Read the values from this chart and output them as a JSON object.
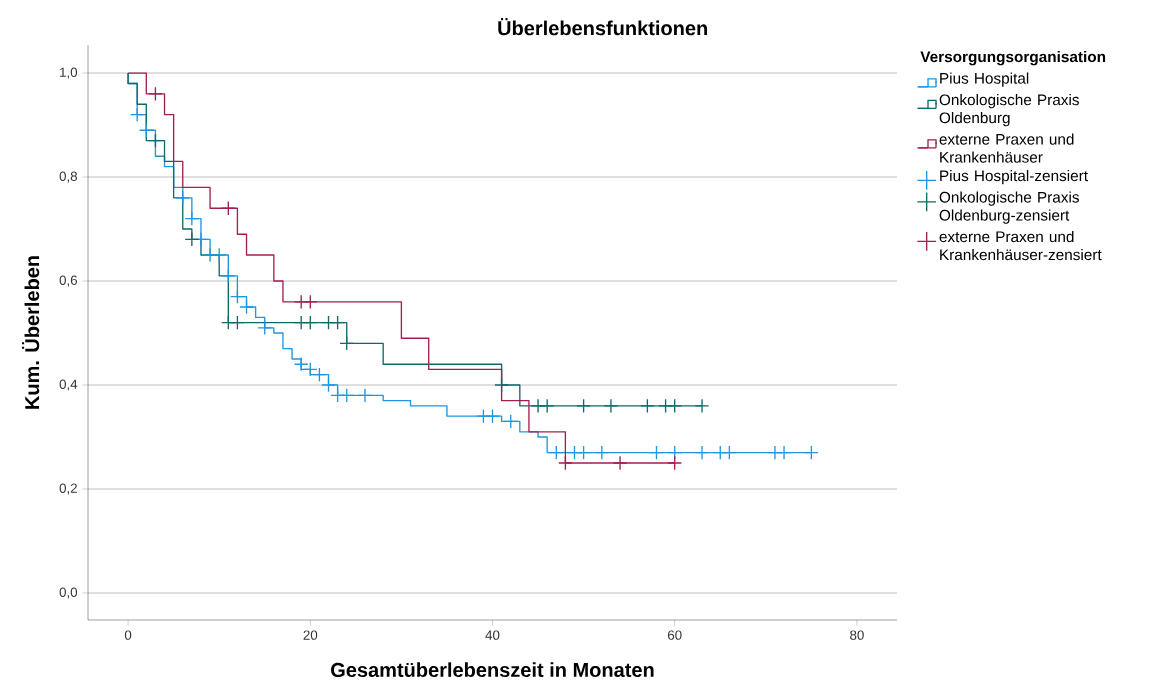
{
  "chart_data": {
    "type": "step",
    "title": "Überlebensfunktionen",
    "xlabel": "Gesamtüberlebenszeit in Monaten",
    "ylabel": "Kum. Überleben",
    "legend_title": "Versorgungsorganisation",
    "legend": "right",
    "grid": "y",
    "xlim": [
      -4.4,
      84.4
    ],
    "ylim": [
      -0.052,
      1.054
    ],
    "xticks": [
      0,
      20,
      40,
      60,
      80
    ],
    "yticks": [
      {
        "value": 0,
        "label": "0,0"
      },
      {
        "value": 0.2,
        "label": "0,2"
      },
      {
        "value": 0.4,
        "label": "0,4"
      },
      {
        "value": 0.6,
        "label": "0,6"
      },
      {
        "value": 0.8,
        "label": "0,8"
      },
      {
        "value": 1.0,
        "label": "1,0"
      }
    ],
    "series": [
      {
        "name": "Pius Hospital",
        "color": "#1e96e0",
        "x": [
          0,
          0,
          1,
          2,
          3,
          4,
          5,
          6,
          7,
          8,
          9,
          11,
          12,
          13,
          14,
          15,
          16,
          17,
          18,
          19,
          20,
          22,
          23,
          28,
          31,
          35,
          41,
          43,
          45,
          46,
          75
        ],
        "values": [
          1.0,
          0.98,
          0.92,
          0.89,
          0.84,
          0.82,
          0.78,
          0.76,
          0.72,
          0.68,
          0.65,
          0.61,
          0.57,
          0.55,
          0.53,
          0.51,
          0.5,
          0.47,
          0.45,
          0.43,
          0.42,
          0.4,
          0.38,
          0.37,
          0.36,
          0.34,
          0.33,
          0.31,
          0.3,
          0.27,
          0.27
        ]
      },
      {
        "name": "Onkologische Praxis Oldenburg",
        "color": "#11686a",
        "x": [
          0,
          0,
          1,
          2,
          4,
          5,
          6,
          7,
          8,
          10,
          11,
          24,
          28,
          41,
          43,
          63
        ],
        "values": [
          1.0,
          0.98,
          0.94,
          0.87,
          0.83,
          0.76,
          0.7,
          0.68,
          0.65,
          0.61,
          0.52,
          0.48,
          0.44,
          0.4,
          0.36,
          0.36
        ]
      },
      {
        "name": "externe Praxen und Krankenhäuser",
        "color": "#a01f50",
        "x": [
          0,
          2,
          4,
          5,
          6,
          9,
          12,
          13,
          16,
          17,
          30,
          33,
          41,
          44,
          48,
          60
        ],
        "values": [
          1.0,
          0.96,
          0.92,
          0.83,
          0.78,
          0.74,
          0.69,
          0.65,
          0.6,
          0.56,
          0.49,
          0.43,
          0.37,
          0.31,
          0.25,
          0.25
        ]
      },
      {
        "name": "Pius Hospital-zensiert",
        "type": "scatter",
        "marker": "cross",
        "color": "#1e96e0",
        "x": [
          1,
          2,
          6,
          7,
          8,
          9,
          10,
          11,
          12,
          13,
          15,
          19,
          20,
          21,
          22,
          23,
          24,
          26,
          39,
          40,
          42,
          47,
          49,
          50,
          52,
          58,
          60,
          63,
          65,
          66,
          71,
          72,
          75
        ],
        "values": [
          0.92,
          0.89,
          0.76,
          0.72,
          0.68,
          0.65,
          0.65,
          0.61,
          0.57,
          0.55,
          0.51,
          0.44,
          0.43,
          0.42,
          0.4,
          0.38,
          0.38,
          0.38,
          0.34,
          0.34,
          0.33,
          0.27,
          0.27,
          0.27,
          0.27,
          0.27,
          0.27,
          0.27,
          0.27,
          0.27,
          0.27,
          0.27,
          0.27
        ]
      },
      {
        "name": "Onkologische Praxis Oldenburg-zensiert",
        "type": "scatter",
        "marker": "cross",
        "color": "#11686a",
        "x": [
          3,
          7,
          11,
          12,
          19,
          20,
          22,
          23,
          24,
          41,
          45,
          46,
          50,
          53,
          57,
          59,
          60,
          63
        ],
        "values": [
          0.87,
          0.68,
          0.52,
          0.52,
          0.52,
          0.52,
          0.52,
          0.52,
          0.48,
          0.4,
          0.36,
          0.36,
          0.36,
          0.36,
          0.36,
          0.36,
          0.36,
          0.36
        ]
      },
      {
        "name": "externe Praxen und Krankenhäuser-zensiert",
        "type": "scatter",
        "marker": "cross",
        "color": "#a01f50",
        "x": [
          3,
          11,
          19,
          20,
          48,
          54,
          60
        ],
        "values": [
          0.96,
          0.74,
          0.56,
          0.56,
          0.25,
          0.25,
          0.25
        ]
      }
    ]
  }
}
